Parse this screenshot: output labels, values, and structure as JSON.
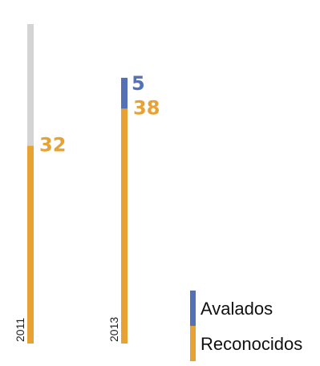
{
  "chart_data": {
    "type": "bar",
    "stacked": true,
    "categories": [
      "2011",
      "2013"
    ],
    "series": [
      {
        "name": "Reconocidos",
        "values": [
          32,
          38
        ],
        "color": "#E8A133"
      },
      {
        "name": "Avalados",
        "values": [
          null,
          5
        ],
        "color": "#5470B6"
      }
    ],
    "background_track_color": "#D4D4D4",
    "legend": {
      "position": "bottom-right"
    }
  }
}
